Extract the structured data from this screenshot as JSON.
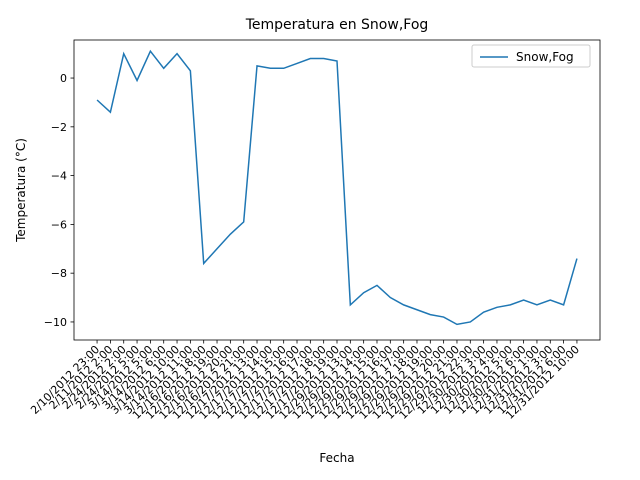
{
  "chart_data": {
    "type": "line",
    "title": "Temperatura en Snow,Fog",
    "xlabel": "Fecha",
    "ylabel": "Temperatura (°C)",
    "categories": [
      "2/10/2012 23:00",
      "2/11/2012 2:00",
      "2/24/2012 2:00",
      "2/24/2012 5:00",
      "3/14/2012 5:00",
      "3/14/2012 6:00",
      "3/14/2012 10:00",
      "3/14/2012 11:00",
      "12/16/2012 18:00",
      "12/16/2012 19:00",
      "12/16/2012 20:00",
      "12/16/2012 21:00",
      "12/17/2012 13:00",
      "12/17/2012 14:00",
      "12/17/2012 15:00",
      "12/17/2012 16:00",
      "12/17/2012 17:00",
      "12/17/2012 18:00",
      "12/17/2012 19:00",
      "12/29/2012 13:00",
      "12/29/2012 14:00",
      "12/29/2012 15:00",
      "12/29/2012 16:00",
      "12/29/2012 17:00",
      "12/29/2012 18:00",
      "12/29/2012 19:00",
      "12/29/2012 20:00",
      "12/29/2012 21:00",
      "12/29/2012 22:00",
      "12/30/2012 3:00",
      "12/30/2012 4:00",
      "12/30/2012 5:00",
      "12/30/2012 6:00",
      "12/31/2012 1:00",
      "12/31/2012 3:00",
      "12/31/2012 6:00",
      "12/31/2012 10:00"
    ],
    "series": [
      {
        "name": "Snow,Fog",
        "color": "#1f77b4",
        "values": [
          -0.9,
          -1.4,
          1.0,
          -0.1,
          1.1,
          0.4,
          1.0,
          0.3,
          -7.6,
          -7.0,
          -6.4,
          -5.9,
          0.5,
          0.4,
          0.4,
          0.6,
          0.8,
          0.8,
          0.7,
          -9.3,
          -8.8,
          -8.5,
          -9.0,
          -9.3,
          -9.5,
          -9.7,
          -9.8,
          -10.1,
          -10.0,
          -9.6,
          -9.4,
          -9.3,
          -9.1,
          -9.3,
          -9.1,
          -9.3,
          -7.4
        ]
      }
    ],
    "ylim": [
      -10.74,
      1.56
    ],
    "yticks": [
      {
        "value": -10,
        "label": "−10"
      },
      {
        "value": -8,
        "label": "−8"
      },
      {
        "value": -6,
        "label": "−6"
      },
      {
        "value": -4,
        "label": "−4"
      },
      {
        "value": -2,
        "label": "−2"
      },
      0
    ],
    "legend": "upper right"
  }
}
